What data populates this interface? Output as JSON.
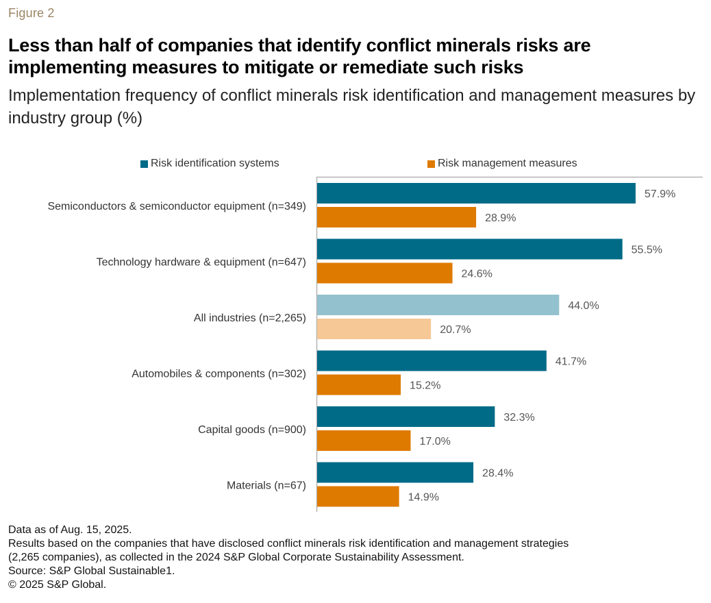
{
  "figure_label": "Figure 2",
  "title": "Less than half of companies that identify conflict minerals risks are implementing measures to mitigate or remediate such risks",
  "subtitle": "Implementation frequency of conflict minerals risk identification and management measures by industry group (%)",
  "colors": {
    "identification": "#006b87",
    "management": "#df7a00",
    "identification_highlight": "#93c1ce",
    "management_highlight": "#f5c896",
    "axis": "#b4b4b4",
    "figure_label": "#9c8464"
  },
  "chart_data": {
    "type": "bar",
    "orientation": "horizontal",
    "title": "Less than half of companies that identify conflict minerals risks are implementing measures to mitigate or remediate such risks",
    "subtitle": "Implementation frequency of conflict minerals risk identification and management measures by industry group (%)",
    "xlabel": "",
    "ylabel": "",
    "xlim": [
      0,
      70
    ],
    "grid": false,
    "legend_position": "top",
    "categories": [
      "Semiconductors & semiconductor equipment (n=349)",
      "Technology hardware & equipment (n=647)",
      "All industries (n=2,265)",
      "Automobiles & components (n=302)",
      "Capital goods (n=900)",
      "Materials (n=67)"
    ],
    "highlighted_category": "All industries (n=2,265)",
    "series": [
      {
        "name": "Risk identification systems",
        "values": [
          57.9,
          55.5,
          44.0,
          41.7,
          32.3,
          28.4
        ],
        "labels": [
          "57.9%",
          "55.5%",
          "44.0%",
          "41.7%",
          "32.3%",
          "28.4%"
        ]
      },
      {
        "name": "Risk management measures",
        "values": [
          28.9,
          24.6,
          20.7,
          15.2,
          17.0,
          14.9
        ],
        "labels": [
          "28.9%",
          "24.6%",
          "20.7%",
          "15.2%",
          "17.0%",
          "14.9%"
        ]
      }
    ]
  },
  "notes": [
    "Data as of Aug. 15, 2025.",
    "Results based on the companies that have disclosed conflict minerals risk identification and management strategies",
    "(2,265 companies), as collected in the 2024 S&P Global Corporate Sustainability Assessment.",
    "Source: S&P Global Sustainable1.",
    "© 2025 S&P Global."
  ]
}
